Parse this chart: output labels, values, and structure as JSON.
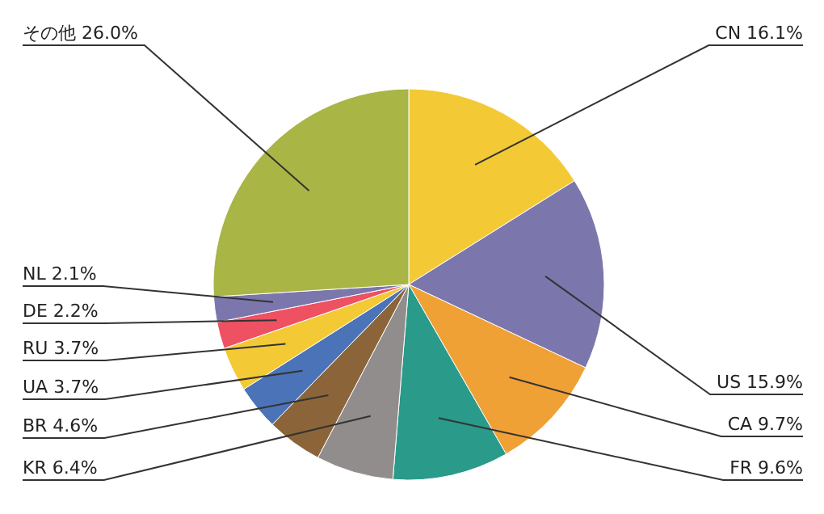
{
  "chart_data": {
    "type": "pie",
    "categories": [
      "CN",
      "US",
      "CA",
      "FR",
      "KR",
      "BR",
      "UA",
      "RU",
      "DE",
      "NL",
      "その他"
    ],
    "values": [
      16.1,
      15.9,
      9.7,
      9.6,
      6.4,
      4.6,
      3.7,
      3.7,
      2.2,
      2.1,
      26.0
    ],
    "value_labels": [
      "16.1%",
      "15.9%",
      "9.7%",
      "9.6%",
      "6.4%",
      "4.6%",
      "3.7%",
      "3.7%",
      "2.2%",
      "2.1%",
      "26.0%"
    ],
    "colors": [
      "#f3c935",
      "#7b77ad",
      "#f0a136",
      "#2a9a8a",
      "#918d8d",
      "#8b6539",
      "#4b73b8",
      "#f3c935",
      "#ee5162",
      "#7b77ad",
      "#a9b545"
    ]
  }
}
